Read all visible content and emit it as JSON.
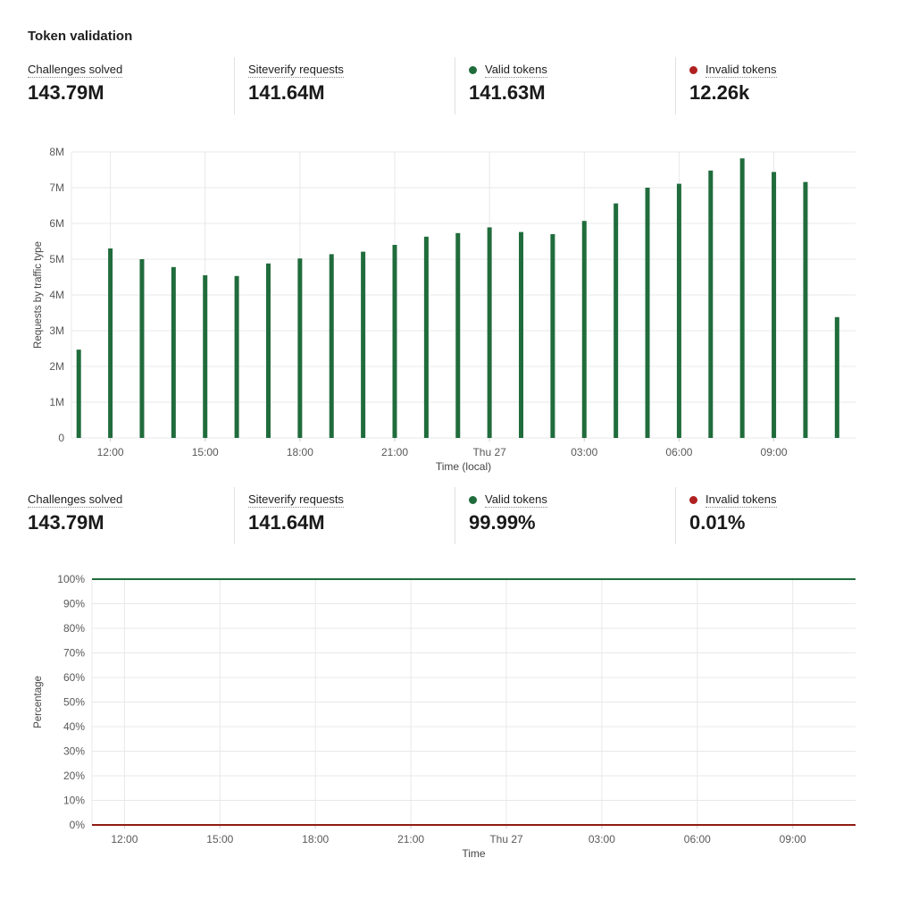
{
  "page_title": "Token validation",
  "colors": {
    "green": "#206c3c",
    "red_dot": "#b02020",
    "red_line": "#8f1c12",
    "grid": "#e8e8e8",
    "tick_text": "#595959",
    "axis_title_text": "#444444"
  },
  "stats_top": [
    {
      "label": "Challenges solved",
      "value": "143.79M",
      "dot": ""
    },
    {
      "label": "Siteverify requests",
      "value": "141.64M",
      "dot": ""
    },
    {
      "label": "Valid tokens",
      "value": "141.63M",
      "dot": "green"
    },
    {
      "label": "Invalid tokens",
      "value": "12.26k",
      "dot": "red"
    }
  ],
  "stats_bottom": [
    {
      "label": "Challenges solved",
      "value": "143.79M",
      "dot": ""
    },
    {
      "label": "Siteverify requests",
      "value": "141.64M",
      "dot": ""
    },
    {
      "label": "Valid tokens",
      "value": "99.99%",
      "dot": "green"
    },
    {
      "label": "Invalid tokens",
      "value": "0.01%",
      "dot": "red"
    }
  ],
  "chart_data": [
    {
      "type": "bar",
      "title": "",
      "ylabel": "Requests by traffic type",
      "xlabel": "Time (local)",
      "ylim": [
        0,
        8000000
      ],
      "ytick_labels": [
        "0",
        "1M",
        "2M",
        "3M",
        "4M",
        "5M",
        "6M",
        "7M",
        "8M"
      ],
      "xtick_labels": [
        "12:00",
        "15:00",
        "18:00",
        "21:00",
        "Thu 27",
        "03:00",
        "06:00",
        "09:00"
      ],
      "xtick_bar_indices": [
        1,
        4,
        7,
        10,
        13,
        16,
        19,
        22
      ],
      "series_name": "Valid tokens",
      "bar_color": "#206c3c",
      "values_millions": [
        2.47,
        5.3,
        5.0,
        4.78,
        4.55,
        4.53,
        4.88,
        5.02,
        5.14,
        5.21,
        5.4,
        5.63,
        5.73,
        5.89,
        5.76,
        5.7,
        6.07,
        6.56,
        7.0,
        7.11,
        7.48,
        7.82,
        7.44,
        7.16,
        3.38
      ],
      "grid": true,
      "legend": "none"
    },
    {
      "type": "line",
      "title": "",
      "ylabel": "Percentage",
      "xlabel": "Time",
      "ylim": [
        0,
        100
      ],
      "ytick_labels": [
        "0%",
        "10%",
        "20%",
        "30%",
        "40%",
        "50%",
        "60%",
        "70%",
        "80%",
        "90%",
        "100%"
      ],
      "xtick_labels": [
        "12:00",
        "15:00",
        "18:00",
        "21:00",
        "Thu 27",
        "03:00",
        "06:00",
        "09:00"
      ],
      "series": [
        {
          "name": "Valid tokens",
          "value_percent": 99.99,
          "color": "#206c3c"
        },
        {
          "name": "Invalid tokens",
          "value_percent": 0.01,
          "color": "#8f1c12"
        }
      ],
      "grid": true,
      "legend": "none"
    }
  ]
}
